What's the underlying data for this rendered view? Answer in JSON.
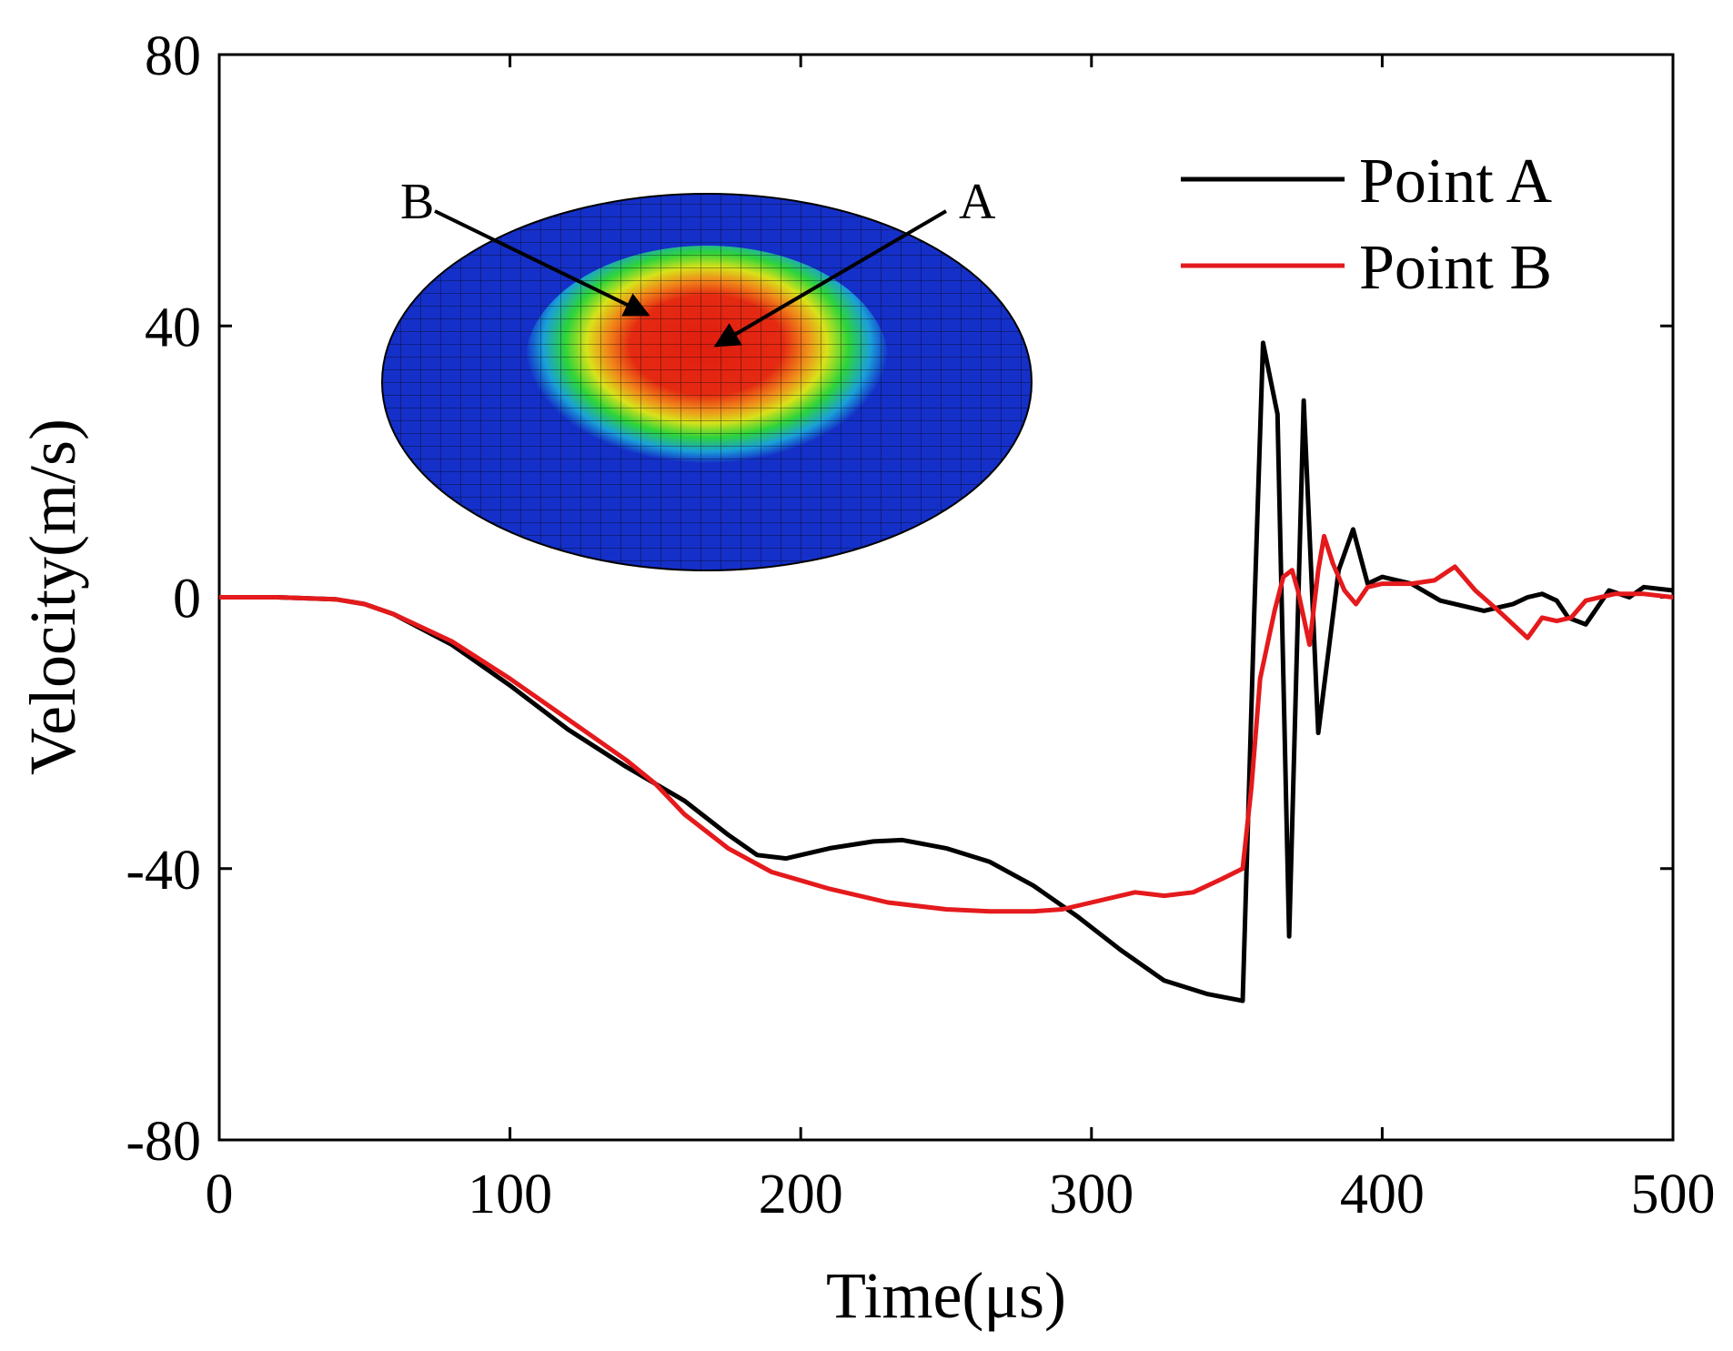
{
  "chart_data": {
    "type": "line",
    "title": "",
    "xlabel": "Time(μs)",
    "ylabel": "Velocity(m/s)",
    "xlim": [
      0,
      500
    ],
    "ylim": [
      -80,
      80
    ],
    "x_ticks": [
      0,
      100,
      200,
      300,
      400,
      500
    ],
    "y_ticks": [
      -80,
      -40,
      0,
      40,
      80
    ],
    "x_tick_labels": [
      "0",
      "100",
      "200",
      "300",
      "400",
      "500"
    ],
    "y_tick_labels": [
      "-80",
      "-40",
      "0",
      "40",
      "80"
    ],
    "grid": false,
    "legend_position": "top-right",
    "series": [
      {
        "name": "Point A",
        "color": "#000000",
        "points": [
          [
            0,
            0
          ],
          [
            20,
            0
          ],
          [
            40,
            -0.3
          ],
          [
            50,
            -1
          ],
          [
            60,
            -2.5
          ],
          [
            80,
            -7
          ],
          [
            100,
            -13
          ],
          [
            120,
            -19.5
          ],
          [
            140,
            -25
          ],
          [
            160,
            -30
          ],
          [
            175,
            -35
          ],
          [
            185,
            -38
          ],
          [
            195,
            -38.5
          ],
          [
            210,
            -37
          ],
          [
            225,
            -36
          ],
          [
            235,
            -35.8
          ],
          [
            250,
            -37
          ],
          [
            265,
            -39
          ],
          [
            280,
            -42.5
          ],
          [
            295,
            -47
          ],
          [
            310,
            -52
          ],
          [
            325,
            -56.5
          ],
          [
            340,
            -58.5
          ],
          [
            352,
            -59.5
          ],
          [
            356,
            -2
          ],
          [
            359,
            37.5
          ],
          [
            364,
            27
          ],
          [
            368,
            -50
          ],
          [
            373,
            29
          ],
          [
            378,
            -20
          ],
          [
            385,
            4
          ],
          [
            390,
            10
          ],
          [
            395,
            2
          ],
          [
            400,
            3
          ],
          [
            410,
            2
          ],
          [
            420,
            -0.5
          ],
          [
            435,
            -2
          ],
          [
            445,
            -1
          ],
          [
            450,
            0
          ],
          [
            455,
            0.5
          ],
          [
            460,
            -0.5
          ],
          [
            464,
            -3
          ],
          [
            470,
            -4
          ],
          [
            478,
            1
          ],
          [
            485,
            0
          ],
          [
            490,
            1.5
          ],
          [
            500,
            1
          ]
        ]
      },
      {
        "name": "Point B",
        "color": "#e41a1c",
        "points": [
          [
            0,
            0
          ],
          [
            20,
            0
          ],
          [
            40,
            -0.3
          ],
          [
            50,
            -1
          ],
          [
            60,
            -2.5
          ],
          [
            80,
            -6.5
          ],
          [
            100,
            -12
          ],
          [
            120,
            -18
          ],
          [
            140,
            -24
          ],
          [
            150,
            -27.5
          ],
          [
            160,
            -32
          ],
          [
            175,
            -37
          ],
          [
            190,
            -40.5
          ],
          [
            210,
            -43
          ],
          [
            230,
            -45
          ],
          [
            250,
            -46
          ],
          [
            265,
            -46.3
          ],
          [
            280,
            -46.3
          ],
          [
            290,
            -46
          ],
          [
            300,
            -45
          ],
          [
            315,
            -43.5
          ],
          [
            325,
            -44
          ],
          [
            335,
            -43.5
          ],
          [
            345,
            -41.5
          ],
          [
            352,
            -40
          ],
          [
            355,
            -28
          ],
          [
            358,
            -12
          ],
          [
            363,
            -2
          ],
          [
            366,
            3
          ],
          [
            369,
            4
          ],
          [
            371,
            1
          ],
          [
            375,
            -7
          ],
          [
            378,
            4
          ],
          [
            380,
            9
          ],
          [
            383,
            5
          ],
          [
            387,
            1
          ],
          [
            391,
            -1
          ],
          [
            395,
            1.5
          ],
          [
            400,
            2
          ],
          [
            410,
            2
          ],
          [
            418,
            2.5
          ],
          [
            425,
            4.5
          ],
          [
            432,
            1
          ],
          [
            440,
            -2
          ],
          [
            450,
            -6
          ],
          [
            455,
            -3
          ],
          [
            460,
            -3.5
          ],
          [
            465,
            -3
          ],
          [
            470,
            -0.5
          ],
          [
            480,
            0.5
          ],
          [
            490,
            0.5
          ],
          [
            500,
            0
          ]
        ]
      }
    ],
    "inset": {
      "description_labels": [
        "B",
        "A"
      ]
    }
  }
}
